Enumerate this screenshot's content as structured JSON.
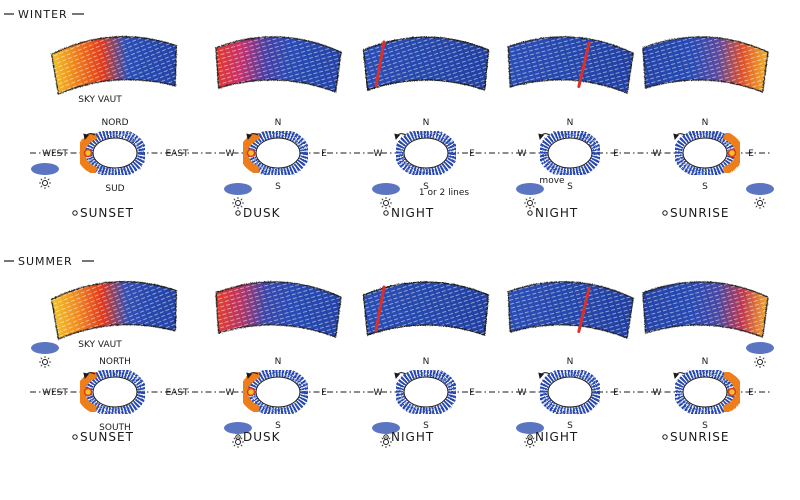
{
  "sections": [
    {
      "title": "WINTER",
      "panels": [
        {
          "label": "SUNSET",
          "vault_colors": [
            "#f2c22a",
            "#ee7d1a",
            "#e23a1c",
            "#2b50b8",
            "#2647ad",
            "#2442a6"
          ],
          "vault_caption": "SKY VAUT",
          "compass": {
            "north": "NORD",
            "south": "SUD",
            "west": "WEST",
            "east": "EAST"
          },
          "note": ""
        },
        {
          "label": "DUSK",
          "vault_colors": [
            "#e33a2a",
            "#c8306c",
            "#4a3fa6",
            "#2a4cb4",
            "#2647ad",
            "#2442a6"
          ],
          "vault_caption": "",
          "compass": {
            "north": "N",
            "south": "S",
            "west": "W",
            "east": "E"
          },
          "note": ""
        },
        {
          "label": "NIGHT",
          "vault_colors": [
            "#2b4fb6",
            "#2a4cb2",
            "#2849ae",
            "#2646aa",
            "#2443a6",
            "#2240a2"
          ],
          "vault_caption": "",
          "compass": {
            "north": "N",
            "south": "S",
            "west": "W",
            "east": "E"
          },
          "note": "1 or 2 lines"
        },
        {
          "label": "NIGHT",
          "vault_colors": [
            "#2b4fb6",
            "#2a4cb2",
            "#2849ae",
            "#2646aa",
            "#2443a6",
            "#2240a2"
          ],
          "vault_caption": "",
          "compass": {
            "north": "N",
            "south": "S",
            "west": "W",
            "east": "E"
          },
          "note": "move"
        },
        {
          "label": "SUNRISE",
          "vault_colors": [
            "#2442a6",
            "#2647ad",
            "#2a4cb4",
            "#5b4aa0",
            "#e0502a",
            "#f0b22a"
          ],
          "vault_caption": "",
          "compass": {
            "north": "N",
            "south": "S",
            "west": "W",
            "east": "E"
          },
          "note": ""
        }
      ]
    },
    {
      "title": "SUMMER",
      "panels": [
        {
          "label": "SUNSET",
          "vault_colors": [
            "#f2c42c",
            "#f08a22",
            "#e2381e",
            "#3450b4",
            "#2647ad",
            "#2442a6"
          ],
          "vault_caption": "SKY VAUT",
          "compass": {
            "north": "NORTH",
            "south": "SOUTH",
            "west": "WEST",
            "east": "EAST"
          },
          "note": ""
        },
        {
          "label": "DUSK",
          "vault_colors": [
            "#e8402a",
            "#b83464",
            "#3c46aa",
            "#2a4cb4",
            "#2647ad",
            "#2442a6"
          ],
          "vault_caption": "",
          "compass": {
            "north": "N",
            "south": "S",
            "west": "W",
            "east": "E"
          },
          "note": ""
        },
        {
          "label": "NIGHT",
          "vault_colors": [
            "#2b4fb6",
            "#2a4cb2",
            "#2849ae",
            "#2646aa",
            "#2443a6",
            "#2240a2"
          ],
          "vault_caption": "",
          "compass": {
            "north": "N",
            "south": "S",
            "west": "W",
            "east": "E"
          },
          "note": ""
        },
        {
          "label": "NIGHT",
          "vault_colors": [
            "#2b4fb6",
            "#2a4cb2",
            "#2849ae",
            "#2646aa",
            "#2443a6",
            "#2240a2"
          ],
          "vault_caption": "",
          "compass": {
            "north": "N",
            "south": "S",
            "west": "W",
            "east": "E"
          },
          "note": ""
        },
        {
          "label": "SUNRISE",
          "vault_colors": [
            "#2442a6",
            "#2647ad",
            "#2a4cb4",
            "#4848a4",
            "#c03850",
            "#f2a82a"
          ],
          "vault_caption": "",
          "compass": {
            "north": "N",
            "south": "S",
            "west": "W",
            "east": "E"
          },
          "note": ""
        }
      ]
    }
  ],
  "colors": {
    "ink": "#1a1a1a",
    "night_blue": "#2647ad",
    "sun_red": "#e2381e",
    "sun_orange": "#ee7d1a",
    "sun_yellow": "#f2c22a",
    "band_red": "#d8302a"
  }
}
